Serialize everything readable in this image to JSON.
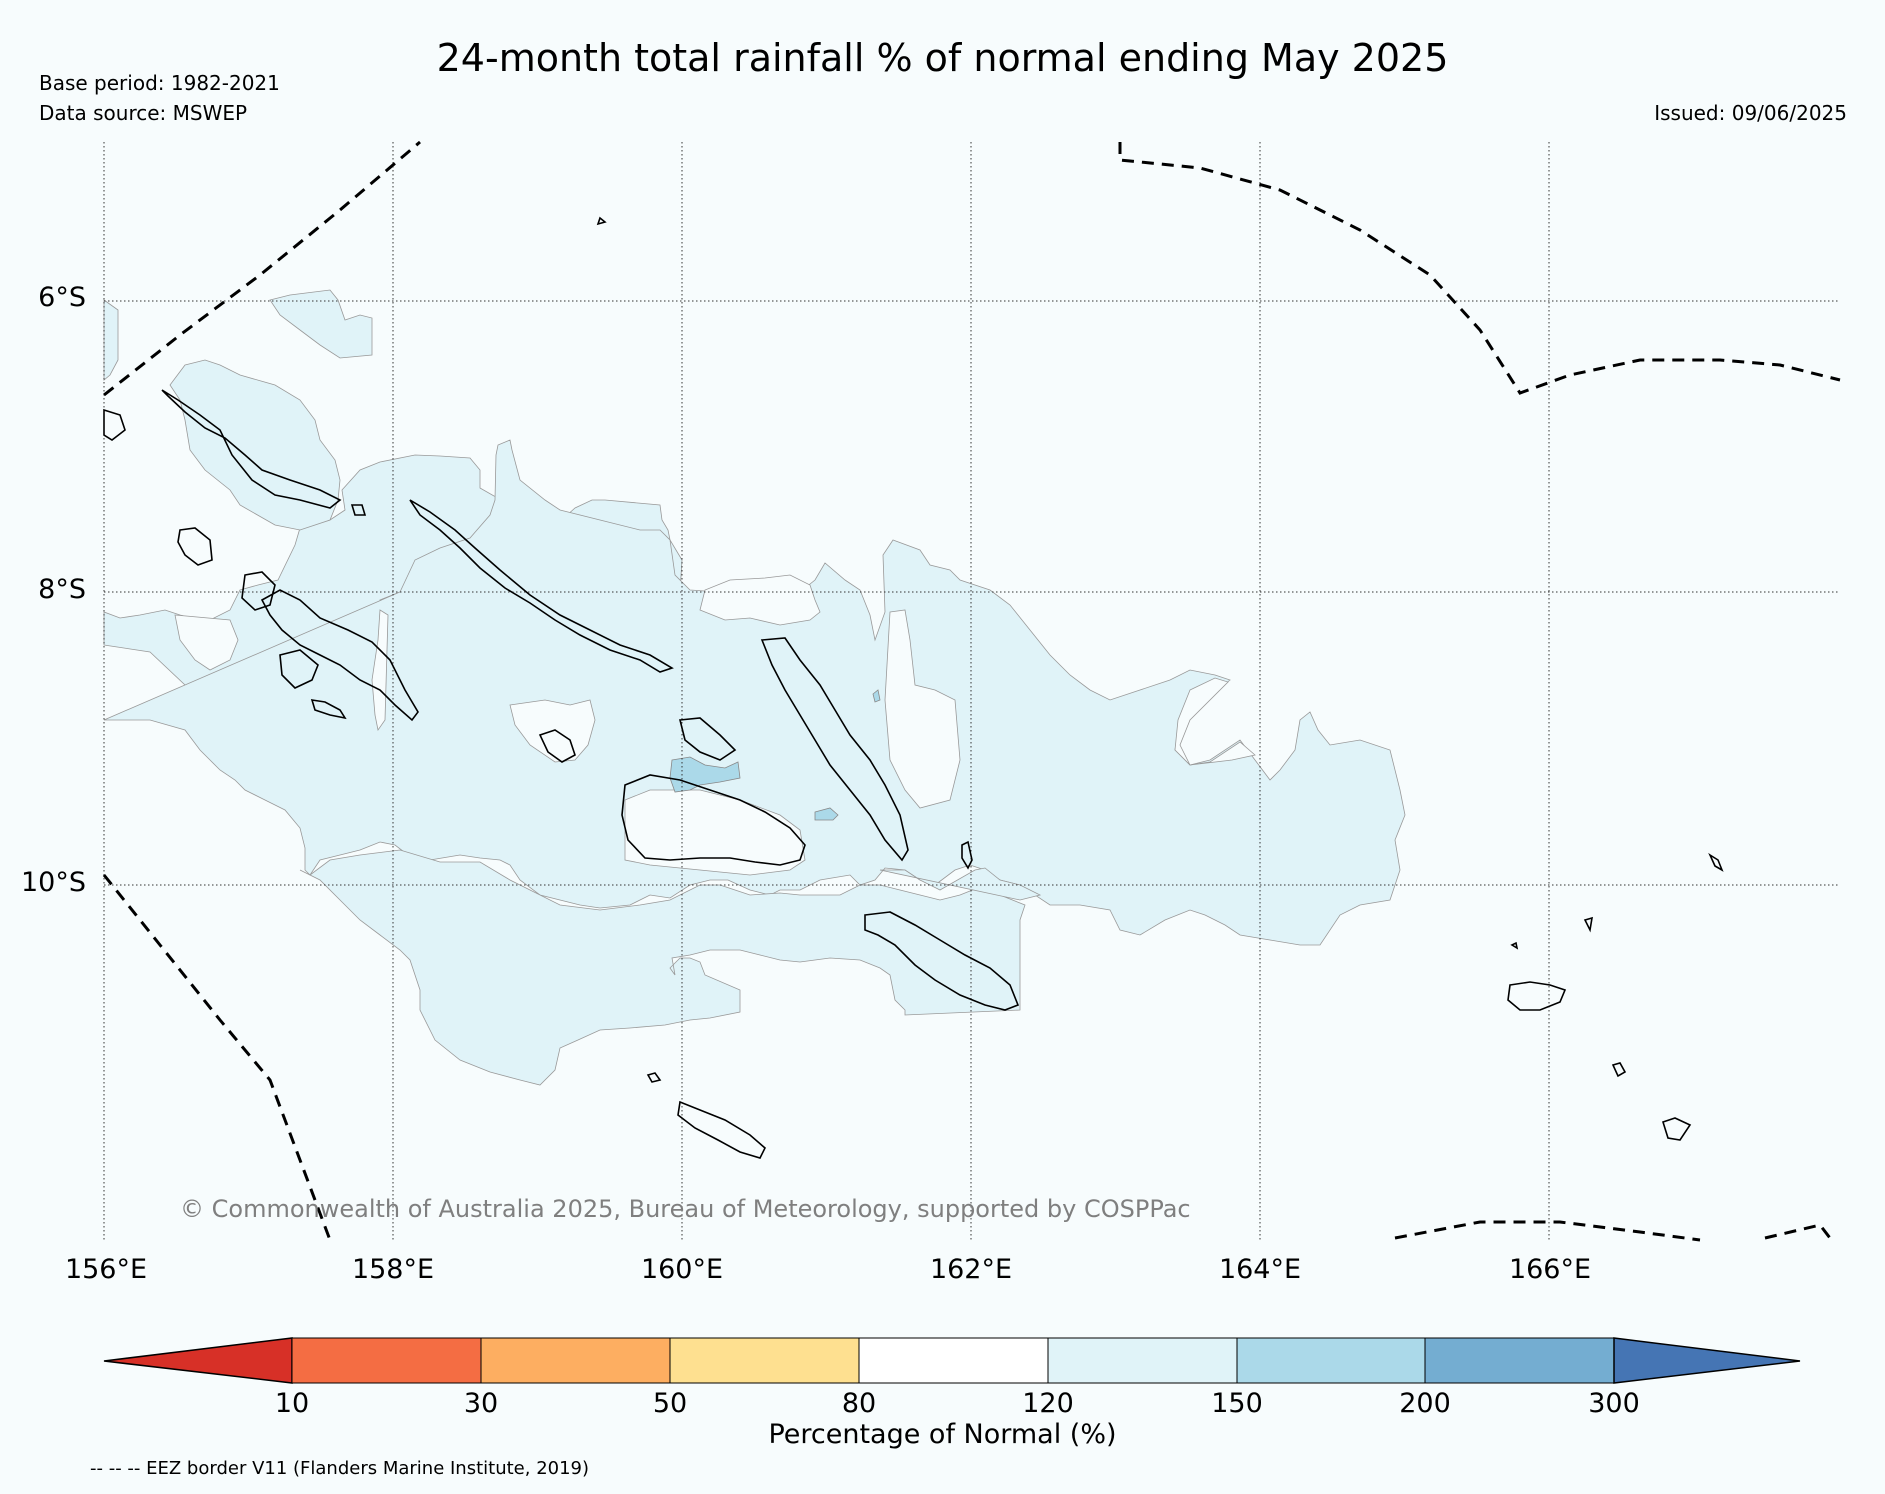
{
  "header": {
    "title": "24-month total rainfall % of normal ending May 2025",
    "base_period": "Base period: 1982-2021",
    "data_source": "Data source: MSWEP",
    "issued": "Issued: 09/06/2025"
  },
  "map": {
    "lat_labels": [
      "6°S",
      "8°S",
      "10°S"
    ],
    "lon_labels": [
      "156°E",
      "158°E",
      "160°E",
      "162°E",
      "164°E",
      "166°E"
    ],
    "copyright": "© Commonwealth of Australia 2025, Bureau of Meteorology, supported by COSPPac",
    "extent": {
      "lon": [
        156,
        168
      ],
      "lat": [
        -5,
        -12.3
      ]
    },
    "colors": {
      "background": "#f7fcfd",
      "above_120": "#e0f3f8",
      "above_150": "#abd9e9",
      "coastline": "#000000",
      "eez": "#000000"
    }
  },
  "colorbar": {
    "ticks": [
      "10",
      "30",
      "50",
      "80",
      "120",
      "150",
      "200",
      "300"
    ],
    "label": "Percentage of Normal (%)",
    "colors": [
      "#d73027",
      "#f46d43",
      "#fdae61",
      "#fee090",
      "#ffffff",
      "#e0f3f8",
      "#abd9e9",
      "#74add1",
      "#4575b4"
    ]
  },
  "legend": {
    "eez_note": "-- -- -- EEZ border V11 (Flanders Marine Institute, 2019)"
  }
}
